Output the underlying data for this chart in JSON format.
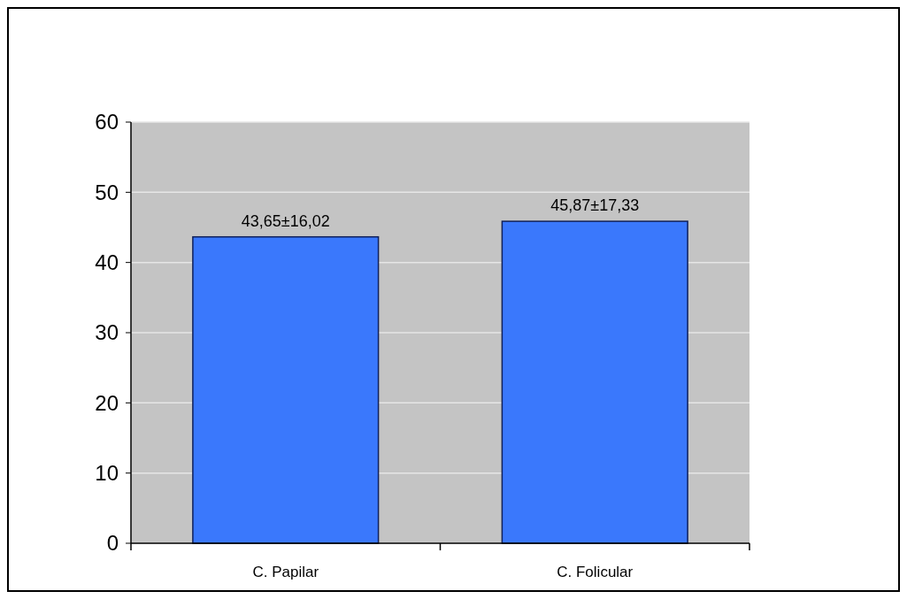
{
  "chart_data": {
    "type": "bar",
    "categories": [
      "C. Papilar",
      "C. Folicular"
    ],
    "values": [
      43.65,
      45.87
    ],
    "value_labels": [
      "43,65±16,02",
      "45,87±17,33"
    ],
    "color": "#3a78fc",
    "ylim": [
      0,
      60
    ],
    "yticks": [
      0,
      10,
      20,
      30,
      40,
      50,
      60
    ],
    "grid": "y"
  }
}
